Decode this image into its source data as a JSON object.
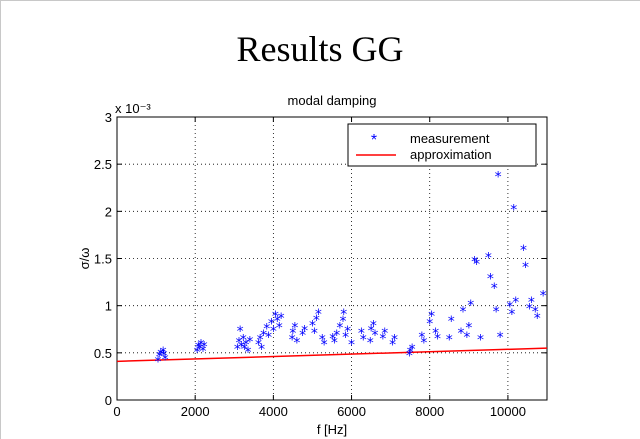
{
  "slide": {
    "title": "Results GG"
  },
  "chart_data": {
    "type": "scatter",
    "title": "modal damping",
    "xlabel": "f [Hz]",
    "ylabel": "σ/ω",
    "y_scale_label": "x 10⁻³",
    "xlim": [
      0,
      11000
    ],
    "ylim": [
      0,
      3
    ],
    "x_ticks": [
      "0",
      "2000",
      "4000",
      "6000",
      "8000",
      "10000"
    ],
    "y_ticks": [
      "0",
      "0.5",
      "1",
      "1.5",
      "2",
      "2.5",
      "3"
    ],
    "grid": true,
    "legend_position": "top-right",
    "colors": {
      "measurement": "#0000ff",
      "approximation": "#ff0000"
    },
    "series": [
      {
        "name": "measurement",
        "marker": "*",
        "x": [
          1050,
          1080,
          1120,
          1180,
          1200,
          1230,
          2050,
          2080,
          2120,
          2150,
          2200,
          2230,
          3080,
          3120,
          3150,
          3180,
          3230,
          3260,
          3300,
          3350,
          3400,
          3620,
          3660,
          3700,
          3750,
          3830,
          3880,
          3950,
          4000,
          4050,
          4100,
          4150,
          4200,
          4480,
          4500,
          4550,
          4600,
          4750,
          4800,
          5000,
          5050,
          5100,
          5150,
          5250,
          5300,
          5520,
          5560,
          5620,
          5700,
          5780,
          5800,
          5850,
          5900,
          6000,
          6250,
          6300,
          6480,
          6500,
          6560,
          6600,
          6800,
          6850,
          7050,
          7100,
          7480,
          7500,
          7550,
          7800,
          7850,
          8000,
          8050,
          8150,
          8200,
          8500,
          8550,
          8800,
          8850,
          8950,
          9000,
          9050,
          9150,
          9200,
          9300,
          9500,
          9550,
          9650,
          9700,
          9750,
          9800,
          10050,
          10100,
          10150,
          10200,
          10400,
          10450,
          10550,
          10600,
          10700,
          10750,
          10900
        ],
        "y": [
          0.42,
          0.47,
          0.5,
          0.52,
          0.48,
          0.44,
          0.52,
          0.57,
          0.55,
          0.6,
          0.53,
          0.58,
          0.55,
          0.62,
          0.74,
          0.58,
          0.65,
          0.55,
          0.6,
          0.52,
          0.63,
          0.6,
          0.65,
          0.55,
          0.7,
          0.77,
          0.68,
          0.82,
          0.74,
          0.9,
          0.85,
          0.78,
          0.88,
          0.65,
          0.72,
          0.78,
          0.62,
          0.7,
          0.75,
          0.8,
          0.72,
          0.86,
          0.92,
          0.65,
          0.6,
          0.66,
          0.62,
          0.7,
          0.78,
          0.85,
          0.92,
          0.68,
          0.74,
          0.6,
          0.72,
          0.65,
          0.62,
          0.75,
          0.8,
          0.7,
          0.66,
          0.72,
          0.6,
          0.65,
          0.48,
          0.52,
          0.55,
          0.68,
          0.62,
          0.82,
          0.9,
          0.72,
          0.66,
          0.65,
          0.85,
          0.72,
          0.95,
          0.68,
          0.78,
          1.02,
          1.48,
          1.45,
          0.65,
          1.52,
          1.3,
          1.2,
          0.95,
          2.38,
          0.68,
          1.0,
          0.92,
          2.03,
          1.05,
          1.6,
          1.42,
          0.98,
          1.05,
          0.95,
          0.88,
          1.12
        ]
      },
      {
        "name": "approximation",
        "type": "line",
        "x": [
          0,
          11000
        ],
        "y": [
          0.41,
          0.55
        ]
      }
    ]
  }
}
